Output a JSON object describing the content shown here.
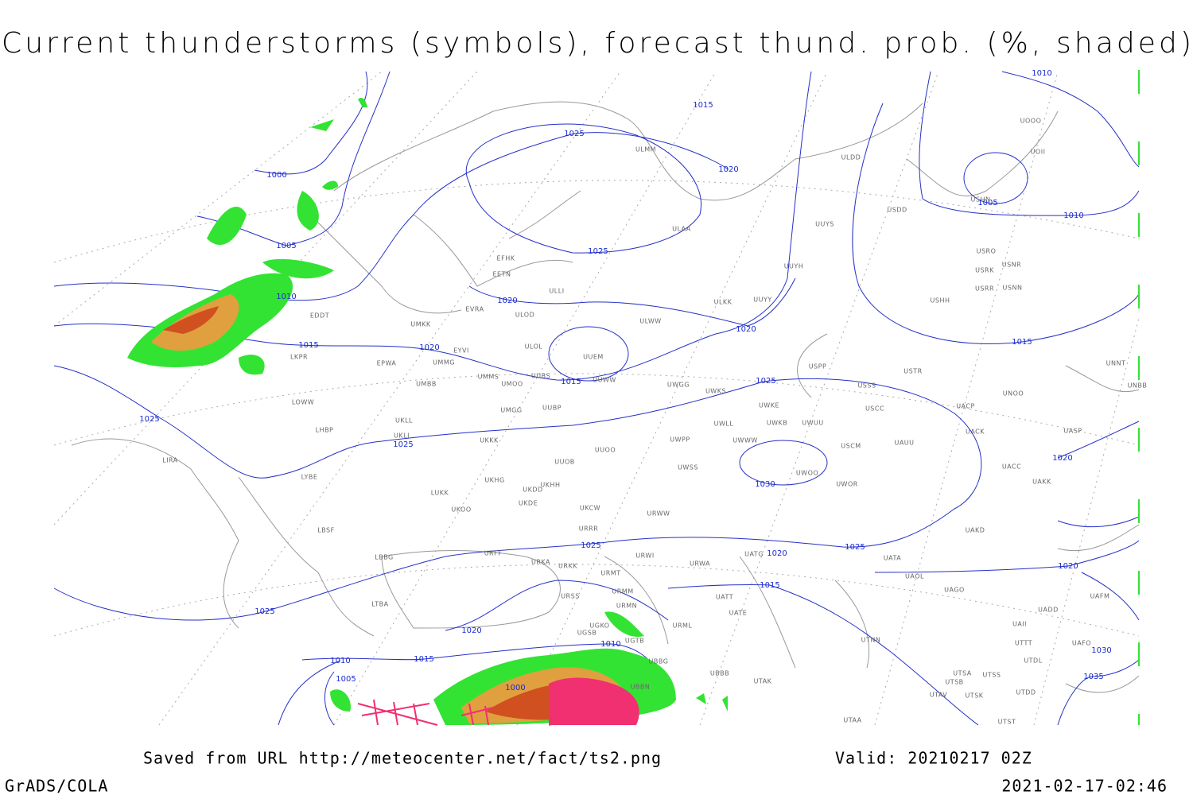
{
  "header": {
    "title": "Current thunderstorms (symbols), forecast thund. prob. (%, shaded)"
  },
  "isobar_labels": [
    "1000",
    "1005",
    "1010",
    "1015",
    "1020",
    "1025",
    "1025",
    "1025",
    "1025",
    "1020",
    "1015",
    "1020",
    "1020",
    "1015",
    "1025",
    "1030",
    "1010",
    "1005",
    "1010",
    "1015",
    "1020",
    "1025",
    "1020",
    "1025",
    "1015",
    "1020",
    "1030",
    "1035",
    "1025",
    "1020",
    "1015",
    "1010",
    "1005",
    "1010",
    "1000"
  ],
  "stations": [
    "EDDT",
    "LKPR",
    "EPWA",
    "LOWW",
    "LHBP",
    "LIRA",
    "LYBE",
    "LBSF",
    "LBBG",
    "LTBA",
    "UMKK",
    "UMMG",
    "UMBB",
    "UKLL",
    "UKLI",
    "UKKK",
    "LUKK",
    "UKOO",
    "EVRA",
    "EYVI",
    "EFHK",
    "EETN",
    "ULLI",
    "ULOD",
    "ULOL",
    "UUEM",
    "UMMS",
    "UMOO",
    "UUBS",
    "UUWW",
    "UUBP",
    "UMGG",
    "UUOO",
    "UUOB",
    "UKHG",
    "UKDD",
    "UKHH",
    "UKDE",
    "UKCW",
    "URRR",
    "URFF",
    "URKA",
    "URKK",
    "URMT",
    "URWI",
    "URMM",
    "URSS",
    "URMN",
    "UGSB",
    "UGTB",
    "UBBG",
    "UBBN",
    "UGKO",
    "URML",
    "UBBB",
    "UATG",
    "UATT",
    "UATE",
    "UATA",
    "UAOL",
    "UAGO",
    "UTNN",
    "UTAK",
    "UTAA",
    "UTSB",
    "UTSA",
    "UTSS",
    "UTSK",
    "UTAV",
    "UTST",
    "UTDD",
    "UTDL",
    "UTTT",
    "UAII",
    "UADD",
    "UAFO",
    "UAFM",
    "UAKD",
    "UAKK",
    "UACC",
    "UASP",
    "UACK",
    "UACP",
    "UNOO",
    "UNBB",
    "UNNT",
    "USCC",
    "USSS",
    "USTR",
    "USPP",
    "USHH",
    "USRR",
    "USNN",
    "USRK",
    "USNR",
    "USRO",
    "USDD",
    "UUYS",
    "UUYH",
    "ULDD",
    "UUYY",
    "ULKK",
    "ULWW",
    "UWGG",
    "UWKS",
    "UWKE",
    "UWKB",
    "UWUU",
    "UWWW",
    "UWLL",
    "UWPP",
    "UWSS",
    "UWOO",
    "UWOR",
    "USCM",
    "UAUU",
    "URWW",
    "URWA",
    "ULAA",
    "ULMM",
    "UOOO",
    "UOII",
    "USHN"
  ],
  "footer": {
    "source": "Saved from URL http://meteocenter.net/fact/ts2.png",
    "valid": "Valid: 20210217 02Z",
    "software": "GrADS/COLA",
    "timestamp": "2021-02-17-02:46"
  }
}
